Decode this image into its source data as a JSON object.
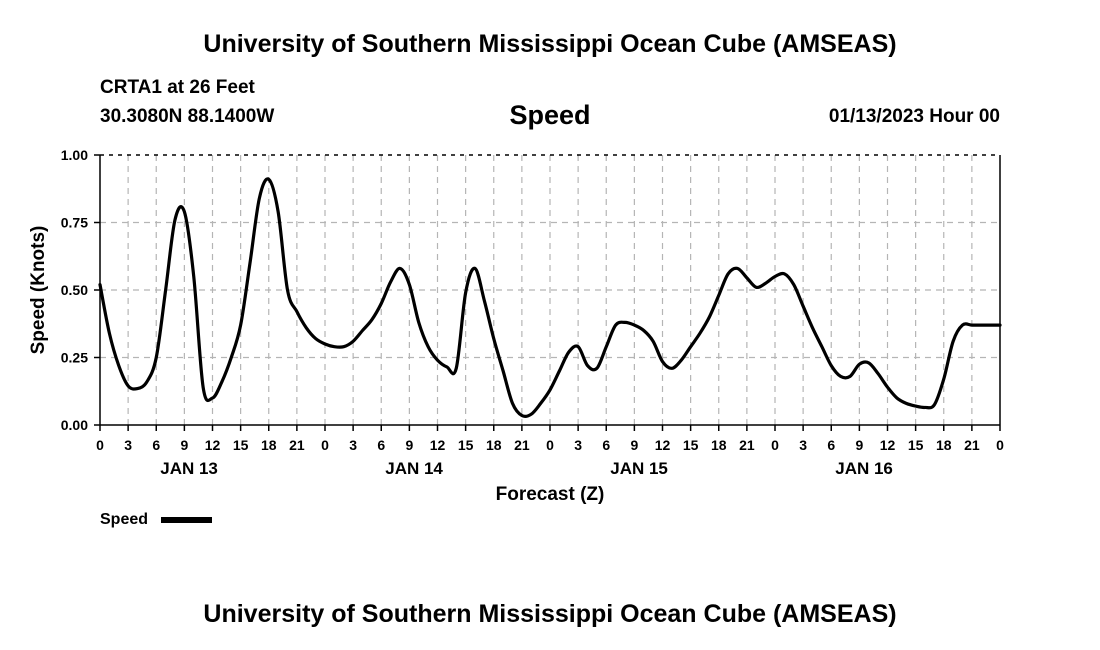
{
  "header": {
    "title": "University of Southern Mississippi Ocean Cube (AMSEAS)",
    "station": "CRTA1 at 26 Feet",
    "coordinates": "30.3080N  88.1400W",
    "plot_title": "Speed",
    "datetime": "01/13/2023 Hour 00"
  },
  "footer": {
    "title": "University of Southern Mississippi Ocean Cube (AMSEAS)"
  },
  "chart_data": {
    "type": "line",
    "title": "Speed",
    "xlabel": "Forecast (Z)",
    "ylabel": "Speed (Knots)",
    "xlim": [
      0,
      96
    ],
    "ylim": [
      0,
      1.0
    ],
    "grid": true,
    "x_tick_step_hours": 3,
    "x_tick_labels": [
      "0",
      "3",
      "6",
      "9",
      "12",
      "15",
      "18",
      "21",
      "0",
      "3",
      "6",
      "9",
      "12",
      "15",
      "18",
      "21",
      "0",
      "3",
      "6",
      "9",
      "12",
      "15",
      "18",
      "21",
      "0",
      "3",
      "6",
      "9",
      "12",
      "15",
      "18",
      "21",
      "0"
    ],
    "y_ticks": [
      0,
      0.25,
      0.5,
      0.75,
      1.0
    ],
    "y_tick_labels": [
      "0.00",
      "0.25",
      "0.50",
      "0.75",
      "1.00"
    ],
    "day_labels": [
      {
        "label": "JAN 13",
        "hour": 9.5
      },
      {
        "label": "JAN 14",
        "hour": 33.5
      },
      {
        "label": "JAN 15",
        "hour": 57.5
      },
      {
        "label": "JAN 16",
        "hour": 81.5
      }
    ],
    "legend": {
      "label": "Speed",
      "placement": "bottom-left"
    },
    "series": [
      {
        "name": "Speed",
        "x": [
          0,
          1,
          2,
          3,
          4,
          5,
          6,
          7,
          8,
          9,
          10,
          11,
          12,
          13,
          14,
          15,
          16,
          17,
          18,
          19,
          20,
          21,
          22,
          23,
          24,
          25,
          26,
          27,
          28,
          29,
          30,
          31,
          32,
          33,
          34,
          35,
          36,
          37,
          38,
          39,
          40,
          41,
          42,
          43,
          44,
          45,
          46,
          47,
          48,
          49,
          50,
          51,
          52,
          53,
          54,
          55,
          56,
          57,
          58,
          59,
          60,
          61,
          62,
          63,
          64,
          65,
          66,
          67,
          68,
          69,
          70,
          71,
          72,
          73,
          74,
          75,
          76,
          77,
          78,
          79,
          80,
          81,
          82,
          83,
          84,
          85,
          86,
          87,
          88,
          89,
          90,
          91,
          92,
          93,
          94,
          95,
          96
        ],
        "values": [
          0.52,
          0.34,
          0.22,
          0.145,
          0.135,
          0.16,
          0.25,
          0.5,
          0.76,
          0.79,
          0.55,
          0.14,
          0.1,
          0.16,
          0.25,
          0.37,
          0.6,
          0.84,
          0.91,
          0.79,
          0.5,
          0.42,
          0.36,
          0.32,
          0.3,
          0.29,
          0.29,
          0.31,
          0.35,
          0.39,
          0.45,
          0.53,
          0.58,
          0.52,
          0.38,
          0.29,
          0.24,
          0.215,
          0.21,
          0.49,
          0.58,
          0.46,
          0.32,
          0.2,
          0.08,
          0.035,
          0.04,
          0.08,
          0.13,
          0.2,
          0.27,
          0.29,
          0.22,
          0.21,
          0.29,
          0.37,
          0.38,
          0.37,
          0.35,
          0.31,
          0.235,
          0.21,
          0.24,
          0.29,
          0.34,
          0.4,
          0.48,
          0.56,
          0.58,
          0.545,
          0.51,
          0.525,
          0.55,
          0.56,
          0.52,
          0.44,
          0.36,
          0.29,
          0.22,
          0.18,
          0.18,
          0.225,
          0.23,
          0.19,
          0.14,
          0.1,
          0.08,
          0.07,
          0.065,
          0.075,
          0.17,
          0.31,
          0.37,
          0.37,
          0.37,
          0.37,
          0.37
        ]
      }
    ]
  }
}
